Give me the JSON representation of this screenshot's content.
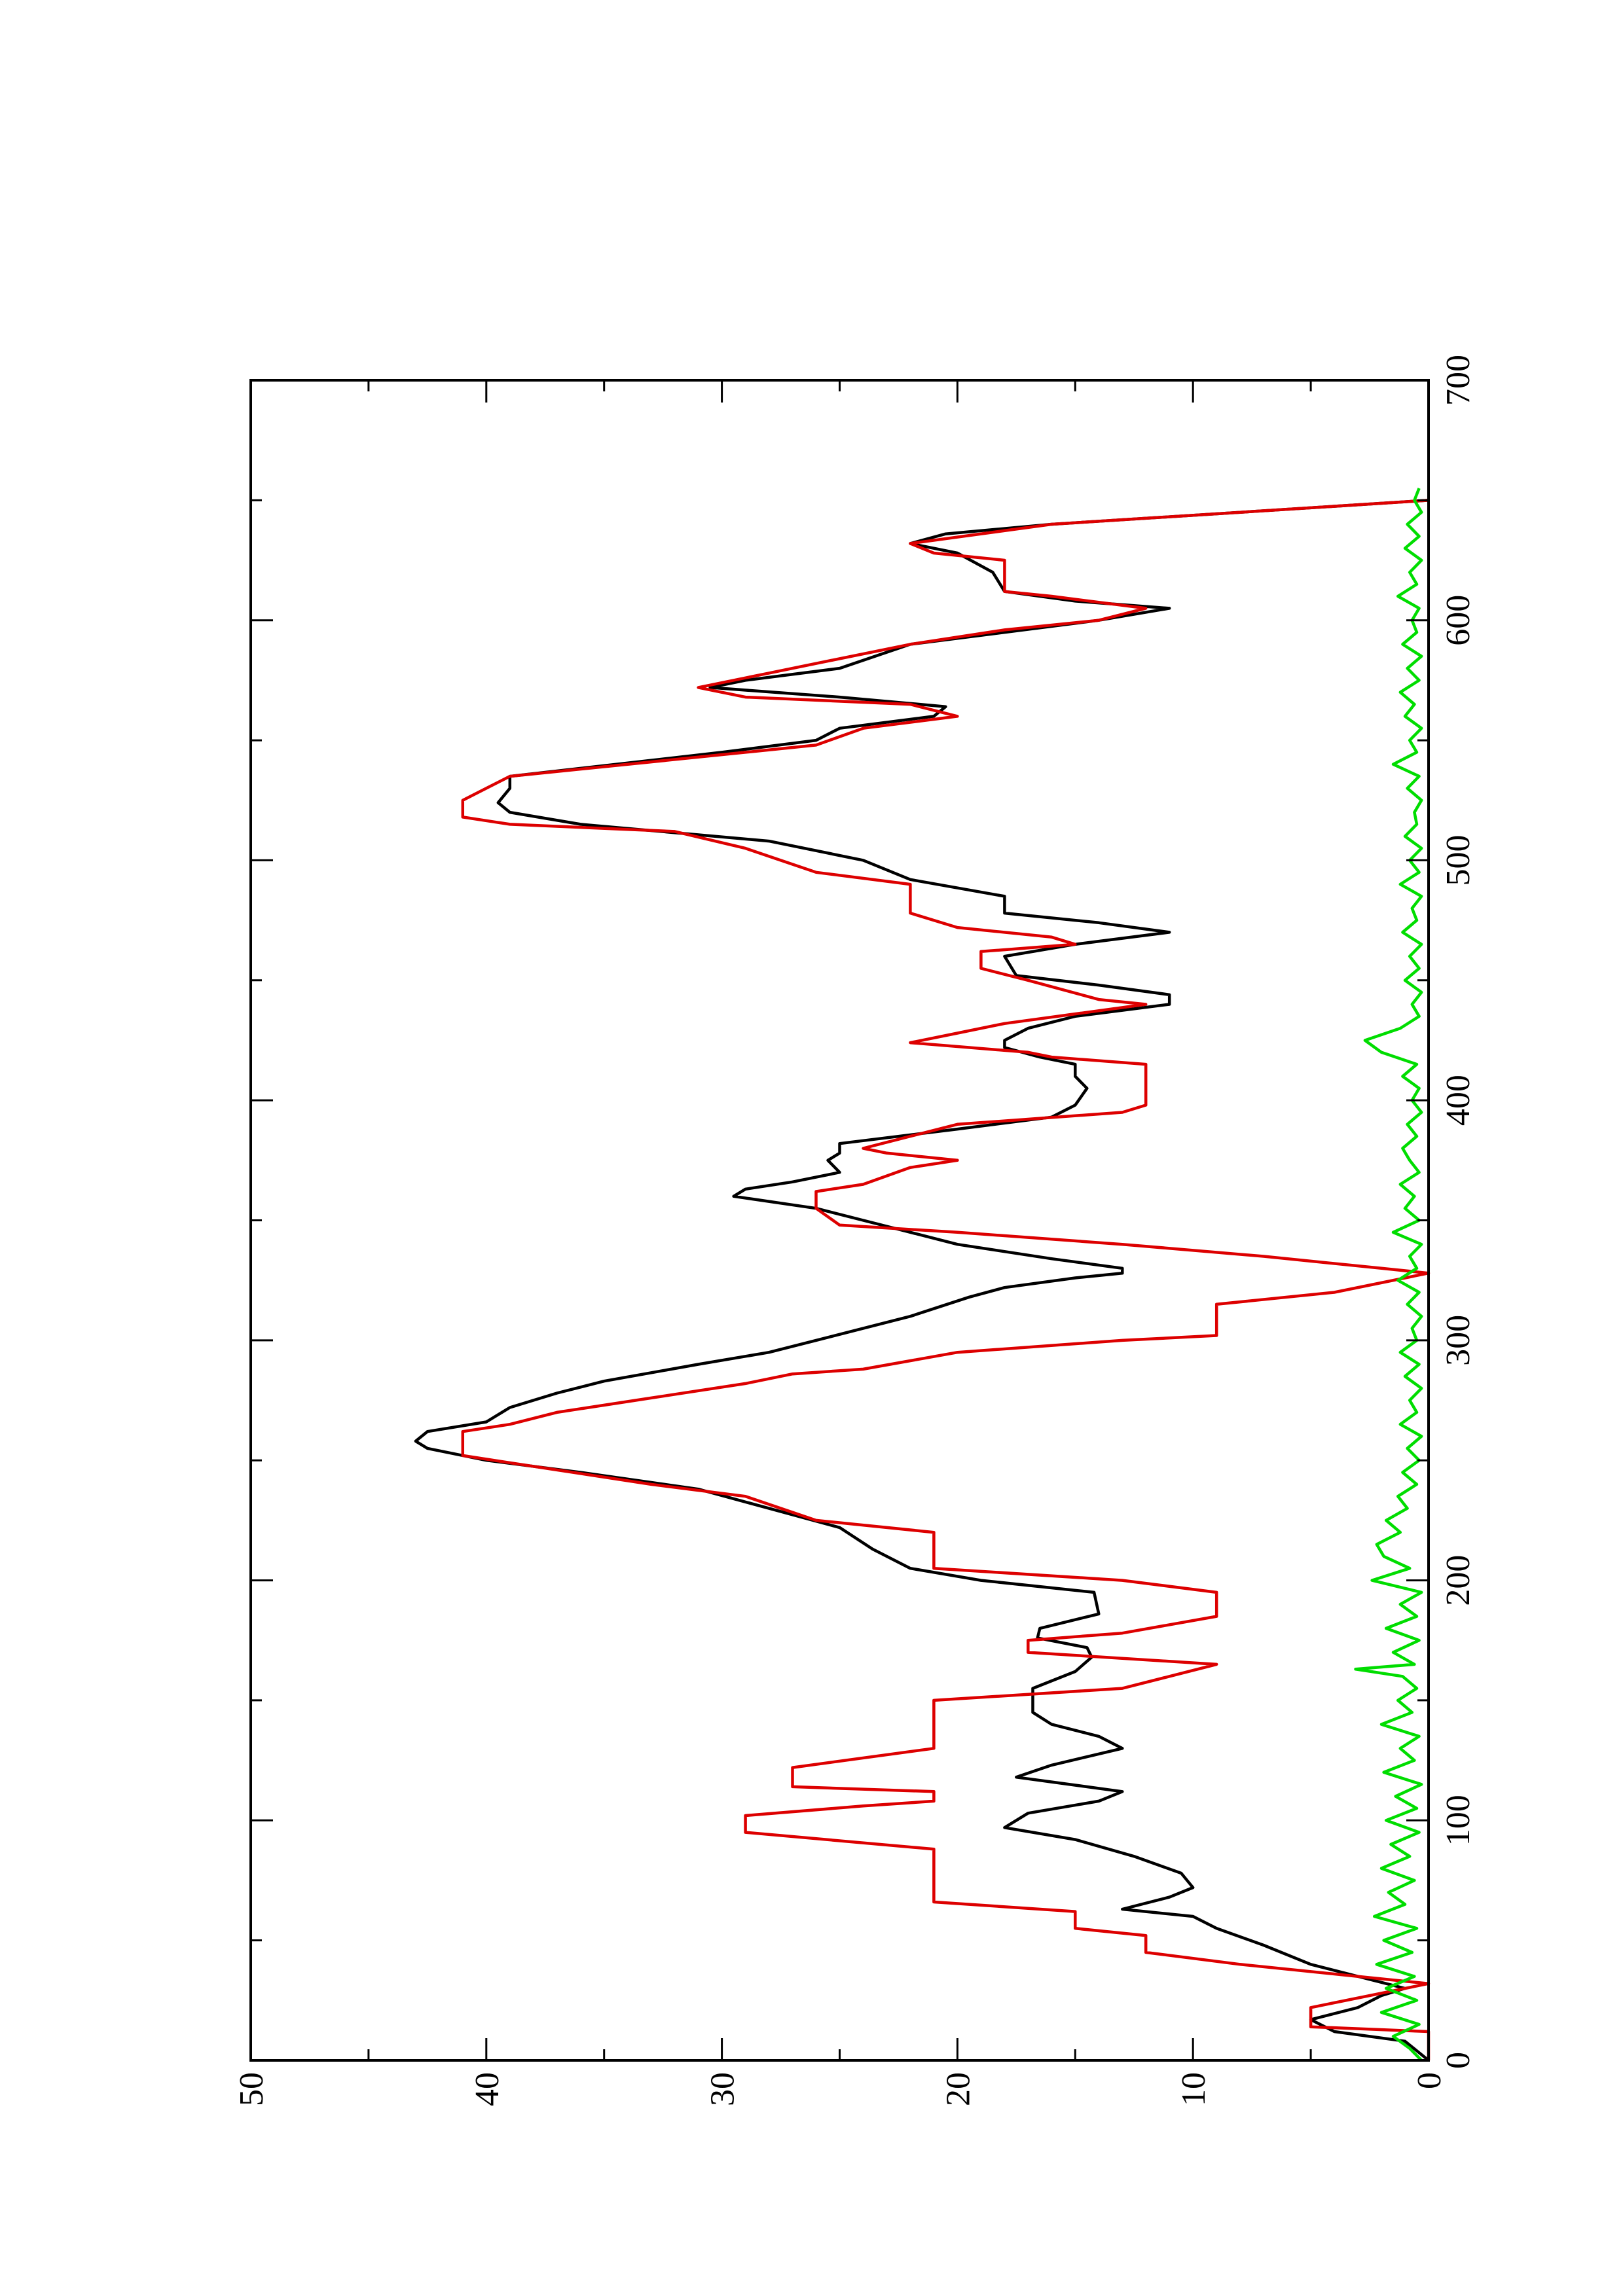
{
  "chart_data": {
    "type": "line",
    "xlim": [
      0,
      700
    ],
    "xticks": [
      0,
      100,
      200,
      300,
      400,
      500,
      600,
      700
    ],
    "xminorticks": [
      50,
      150,
      250,
      350,
      450,
      550,
      650
    ],
    "ylim": [
      0,
      50
    ],
    "yticks": [
      0,
      10,
      20,
      30,
      40,
      50
    ],
    "yminorticks": [
      5,
      15,
      25,
      35,
      45
    ],
    "rotated": true,
    "series": [
      {
        "color": "#000000",
        "x": [
          0,
          8,
          12,
          17,
          22,
          27,
          30,
          35,
          40,
          48,
          55,
          60,
          63,
          68,
          72,
          78,
          85,
          92,
          97,
          103,
          108,
          112,
          116,
          118,
          123,
          130,
          135,
          140,
          145,
          155,
          162,
          168,
          172,
          176,
          180,
          186,
          195,
          200,
          205,
          213,
          222,
          230,
          238,
          245,
          250,
          255,
          258,
          262,
          266,
          272,
          278,
          283,
          290,
          295,
          300,
          310,
          318,
          322,
          326,
          328,
          330,
          334,
          340,
          345,
          350,
          355,
          360,
          363,
          366,
          370,
          375,
          378,
          382,
          388,
          393,
          398,
          405,
          410,
          415,
          418,
          422,
          425,
          430,
          435,
          440,
          444,
          448,
          452,
          460,
          465,
          470,
          474,
          478,
          485,
          492,
          500,
          508,
          515,
          520,
          524,
          530,
          535,
          545,
          550,
          555,
          560,
          564,
          568,
          572,
          575,
          580,
          590,
          595,
          600,
          605,
          608,
          612,
          620,
          628,
          632,
          636,
          640,
          650
        ],
        "values": [
          0,
          1,
          4,
          5,
          3,
          2,
          1,
          3,
          5,
          7,
          9,
          10,
          13,
          11,
          10,
          10.5,
          12.5,
          15,
          18,
          17,
          14,
          13,
          16,
          17.5,
          16,
          13,
          14,
          16,
          16.8,
          16.8,
          15,
          14.3,
          14.5,
          16.6,
          16.5,
          14,
          14.2,
          19,
          22,
          23.6,
          25,
          28,
          31,
          36,
          40,
          42.5,
          43,
          42.5,
          40,
          39,
          37,
          35,
          31,
          28,
          26,
          22,
          19.5,
          18,
          15,
          13,
          13,
          16,
          20,
          22,
          24,
          26,
          29.5,
          29,
          27,
          25,
          25.5,
          25,
          25,
          20,
          16,
          15,
          14.5,
          15,
          15,
          16.5,
          18,
          18,
          17,
          15,
          11,
          11,
          14,
          17.5,
          18,
          15,
          11,
          14,
          18,
          18,
          22,
          24,
          28,
          36,
          39,
          39.5,
          39,
          39,
          30,
          26,
          25,
          21,
          20.5,
          25,
          30.5,
          29,
          25,
          22,
          18,
          14,
          11,
          15,
          18,
          18.5,
          20,
          22,
          20.5,
          16,
          0
        ]
      },
      {
        "color": "#dd0000",
        "x": [
          0,
          12,
          14,
          22,
          32,
          35,
          40,
          45,
          52,
          55,
          62,
          66,
          88,
          95,
          102,
          106,
          108,
          112,
          114,
          122,
          130,
          150,
          155,
          160,
          165,
          170,
          175,
          178,
          185,
          195,
          200,
          205,
          220,
          225,
          235,
          240,
          246,
          252,
          262,
          265,
          270,
          276,
          282,
          286,
          288,
          295,
          300,
          302,
          315,
          320,
          328,
          330,
          335,
          340,
          345,
          348,
          355,
          362,
          365,
          372,
          375,
          378,
          380,
          385,
          390,
          395,
          398,
          415,
          418,
          420,
          424,
          428,
          432,
          440,
          442,
          450,
          455,
          462,
          465,
          468,
          472,
          478,
          490,
          495,
          505,
          512,
          515,
          518,
          525,
          530,
          535,
          545,
          548,
          555,
          560,
          565,
          568,
          572,
          578,
          582,
          590,
          596,
          600,
          605,
          610,
          612,
          625,
          628,
          632,
          640,
          650
        ],
        "values": [
          0,
          0,
          5,
          5,
          0,
          3,
          8,
          12,
          12,
          15,
          15,
          21,
          21,
          29,
          29,
          24,
          21,
          21,
          27,
          27,
          21,
          21,
          13,
          11,
          9,
          17,
          17,
          13,
          9,
          9,
          13,
          21,
          21,
          26,
          29,
          33,
          37,
          41,
          41,
          39,
          37,
          33,
          29,
          27,
          24,
          20,
          13,
          9,
          9,
          4,
          0,
          2,
          7,
          13,
          20,
          25,
          26,
          26,
          24,
          22,
          20,
          23,
          24,
          22,
          20,
          13,
          12,
          12,
          16,
          17,
          22,
          20,
          18,
          12,
          14,
          17,
          19,
          19,
          15,
          16,
          20,
          22,
          22,
          26,
          29,
          32,
          39,
          41,
          41,
          40,
          39,
          29,
          26,
          24,
          20,
          22,
          29,
          31,
          28,
          26,
          22,
          18,
          14,
          12,
          16,
          18,
          18,
          21,
          22,
          16,
          0
        ]
      },
      {
        "color": "#00dd00",
        "x": [
          0,
          5,
          10,
          15,
          20,
          25,
          30,
          35,
          40,
          45,
          50,
          55,
          60,
          65,
          70,
          75,
          80,
          85,
          90,
          95,
          100,
          105,
          110,
          115,
          120,
          125,
          130,
          135,
          140,
          145,
          150,
          155,
          160,
          163,
          165,
          170,
          175,
          180,
          185,
          190,
          195,
          200,
          205,
          210,
          215,
          220,
          225,
          230,
          235,
          240,
          245,
          250,
          255,
          260,
          265,
          270,
          275,
          280,
          285,
          290,
          295,
          300,
          305,
          310,
          315,
          320,
          325,
          330,
          335,
          340,
          345,
          350,
          355,
          360,
          365,
          370,
          375,
          380,
          385,
          390,
          395,
          400,
          405,
          410,
          415,
          420,
          425,
          430,
          435,
          440,
          445,
          450,
          455,
          460,
          465,
          470,
          475,
          480,
          485,
          490,
          495,
          500,
          505,
          510,
          515,
          520,
          525,
          530,
          535,
          540,
          545,
          550,
          555,
          560,
          565,
          570,
          575,
          580,
          585,
          590,
          595,
          600,
          605,
          610,
          615,
          620,
          625,
          630,
          635,
          640,
          645,
          650,
          655
        ],
        "values": [
          0.3,
          0.8,
          1.5,
          0.4,
          2,
          0.5,
          1.8,
          0.6,
          2.2,
          0.7,
          1.9,
          0.5,
          2.3,
          1,
          1.7,
          0.6,
          2,
          0.8,
          1.6,
          0.4,
          1.8,
          0.5,
          1.4,
          0.3,
          1.9,
          0.6,
          1.2,
          0.4,
          2,
          0.7,
          1.3,
          0.5,
          1.1,
          3.1,
          0.6,
          1.5,
          0.4,
          1.8,
          0.5,
          1.2,
          0.3,
          2.4,
          0.8,
          1.9,
          2.2,
          1.2,
          1.8,
          0.9,
          1.3,
          0.5,
          1.1,
          0.4,
          0.9,
          0.3,
          1.2,
          0.5,
          0.8,
          0.3,
          1,
          0.4,
          1.2,
          0.5,
          0.7,
          0.3,
          0.9,
          0.4,
          1.3,
          0.5,
          0.8,
          0.3,
          1.5,
          0.4,
          1,
          0.6,
          1.2,
          0.4,
          0.8,
          1.1,
          0.5,
          0.9,
          0.3,
          0.7,
          0.4,
          1.1,
          0.5,
          2,
          2.7,
          1.2,
          0.4,
          0.7,
          0.3,
          1,
          0.4,
          0.8,
          0.3,
          1.1,
          0.5,
          0.7,
          0.3,
          1.2,
          0.4,
          0.8,
          0.3,
          1,
          0.5,
          0.6,
          0.3,
          0.9,
          0.4,
          1.5,
          0.5,
          0.8,
          0.3,
          1,
          0.6,
          1.2,
          0.4,
          0.9,
          0.3,
          1.1,
          0.5,
          0.7,
          0.4,
          1.3,
          0.5,
          0.8,
          0.3,
          1,
          0.4,
          0.9,
          0.3,
          0.6,
          0.4
        ]
      }
    ]
  }
}
